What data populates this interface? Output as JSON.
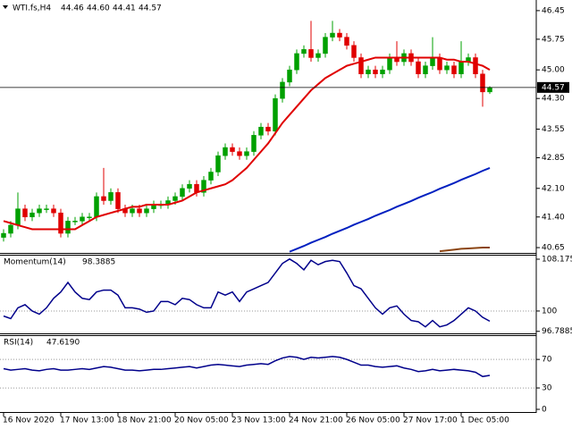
{
  "chart_data": [
    {
      "type": "candlestick",
      "title": "WTI.fs,H4",
      "ohlc_labels": [
        "44.46",
        "44.60",
        "44.41",
        "44.57"
      ],
      "categories": [
        "16 Nov 2020",
        null,
        null,
        null,
        null,
        null,
        null,
        null,
        "17 Nov 13:00",
        null,
        null,
        null,
        null,
        null,
        null,
        null,
        "18 Nov 21:00",
        null,
        null,
        null,
        null,
        null,
        null,
        null,
        "20 Nov 05:00",
        null,
        null,
        null,
        null,
        null,
        null,
        null,
        "23 Nov 13:00",
        null,
        null,
        null,
        null,
        null,
        null,
        null,
        "24 Nov 21:00",
        null,
        null,
        null,
        null,
        null,
        null,
        null,
        "26 Nov 05:00",
        null,
        null,
        null,
        null,
        null,
        null,
        null,
        "27 Nov 17:00",
        null,
        null,
        null,
        null,
        null,
        null,
        null,
        "1 Dec 05:00",
        null,
        null,
        null,
        null
      ],
      "open": [
        40.9,
        41.0,
        41.2,
        41.6,
        41.4,
        41.5,
        41.6,
        41.6,
        41.5,
        41.0,
        41.3,
        41.3,
        41.4,
        41.4,
        41.9,
        41.8,
        42.0,
        41.6,
        41.5,
        41.6,
        41.5,
        41.6,
        41.7,
        41.7,
        41.8,
        41.9,
        42.1,
        42.2,
        42.0,
        42.3,
        42.5,
        42.9,
        43.1,
        43.0,
        42.9,
        43.0,
        43.4,
        43.6,
        43.5,
        44.3,
        44.7,
        45.0,
        45.4,
        45.5,
        45.3,
        45.4,
        45.8,
        45.9,
        45.8,
        45.6,
        45.3,
        44.9,
        45.0,
        44.9,
        45.0,
        45.3,
        45.2,
        45.4,
        45.2,
        44.9,
        45.1,
        45.3,
        45.0,
        45.1,
        44.9,
        45.2,
        45.3,
        44.9,
        44.46
      ],
      "high": [
        41.1,
        41.3,
        42.0,
        41.7,
        41.6,
        41.7,
        41.7,
        41.7,
        41.6,
        41.4,
        41.4,
        41.5,
        41.5,
        42.0,
        42.6,
        42.1,
        42.1,
        41.7,
        41.7,
        41.7,
        41.7,
        41.8,
        41.8,
        41.9,
        42.0,
        42.2,
        42.3,
        42.3,
        42.4,
        42.6,
        43.0,
        43.2,
        43.2,
        43.1,
        43.1,
        43.5,
        43.7,
        43.7,
        44.4,
        44.8,
        45.1,
        45.5,
        45.6,
        46.2,
        45.5,
        45.9,
        46.2,
        46.0,
        45.9,
        45.7,
        45.4,
        45.1,
        45.1,
        45.1,
        45.4,
        45.7,
        45.5,
        45.5,
        45.3,
        45.2,
        45.8,
        45.4,
        45.2,
        45.2,
        45.7,
        45.4,
        45.4,
        45.0,
        44.6
      ],
      "low": [
        40.8,
        40.9,
        41.1,
        41.3,
        41.3,
        41.4,
        41.5,
        41.4,
        40.9,
        40.9,
        41.2,
        41.2,
        41.3,
        41.3,
        41.7,
        41.7,
        41.5,
        41.4,
        41.4,
        41.4,
        41.4,
        41.5,
        41.6,
        41.6,
        41.7,
        41.8,
        42.0,
        41.9,
        41.9,
        42.2,
        42.4,
        42.8,
        42.9,
        42.8,
        42.8,
        42.9,
        43.3,
        43.4,
        43.4,
        44.2,
        44.6,
        44.9,
        45.3,
        45.2,
        45.2,
        45.3,
        45.7,
        45.7,
        45.5,
        45.2,
        44.8,
        44.8,
        44.8,
        44.8,
        44.9,
        45.1,
        45.1,
        45.1,
        44.8,
        44.8,
        45.0,
        44.9,
        44.9,
        44.8,
        44.8,
        45.1,
        44.8,
        44.1,
        44.41
      ],
      "close": [
        41.0,
        41.2,
        41.6,
        41.4,
        41.5,
        41.6,
        41.6,
        41.5,
        41.0,
        41.3,
        41.3,
        41.4,
        41.4,
        41.9,
        41.8,
        42.0,
        41.6,
        41.5,
        41.6,
        41.5,
        41.6,
        41.7,
        41.7,
        41.8,
        41.9,
        42.1,
        42.2,
        42.0,
        42.3,
        42.5,
        42.9,
        43.1,
        43.0,
        42.9,
        43.0,
        43.4,
        43.6,
        43.5,
        44.3,
        44.7,
        45.0,
        45.4,
        45.5,
        45.3,
        45.4,
        45.8,
        45.9,
        45.8,
        45.6,
        45.3,
        44.9,
        45.0,
        44.9,
        45.0,
        45.3,
        45.2,
        45.4,
        45.2,
        44.9,
        45.1,
        45.3,
        45.0,
        45.1,
        44.9,
        45.2,
        45.3,
        44.9,
        44.46,
        44.57
      ],
      "up_color": "#00a000",
      "down_color": "#e00000",
      "series": [
        {
          "color": "#e00000",
          "values": [
            41.3,
            41.25,
            41.2,
            41.15,
            41.1,
            41.1,
            41.1,
            41.1,
            41.1,
            41.1,
            41.1,
            41.2,
            41.3,
            41.4,
            41.45,
            41.5,
            41.55,
            41.6,
            41.65,
            41.65,
            41.7,
            41.7,
            41.7,
            41.7,
            41.75,
            41.8,
            41.9,
            42.0,
            42.05,
            42.1,
            42.15,
            42.2,
            42.3,
            42.45,
            42.6,
            42.8,
            43.0,
            43.2,
            43.45,
            43.7,
            43.9,
            44.1,
            44.3,
            44.5,
            44.65,
            44.8,
            44.9,
            45.0,
            45.1,
            45.15,
            45.2,
            45.25,
            45.3,
            45.3,
            45.3,
            45.3,
            45.3,
            45.3,
            45.3,
            45.3,
            45.3,
            45.3,
            45.25,
            45.25,
            45.2,
            45.2,
            45.15,
            45.1,
            45.0
          ]
        },
        {
          "color": "#0020c0",
          "values": [
            null,
            null,
            null,
            null,
            null,
            null,
            null,
            null,
            null,
            null,
            null,
            null,
            null,
            null,
            null,
            null,
            null,
            null,
            null,
            null,
            null,
            null,
            null,
            null,
            null,
            null,
            null,
            null,
            null,
            null,
            null,
            null,
            null,
            null,
            null,
            null,
            null,
            null,
            null,
            null,
            40.55,
            40.62,
            40.69,
            40.77,
            40.84,
            40.91,
            40.99,
            41.06,
            41.13,
            41.21,
            41.28,
            41.35,
            41.43,
            41.5,
            41.57,
            41.65,
            41.72,
            41.79,
            41.87,
            41.94,
            42.01,
            42.09,
            42.16,
            42.23,
            42.31,
            42.38,
            42.45,
            42.53,
            42.6
          ]
        },
        {
          "color": "#8b4513",
          "values": [
            null,
            null,
            null,
            null,
            null,
            null,
            null,
            null,
            null,
            null,
            null,
            null,
            null,
            null,
            null,
            null,
            null,
            null,
            null,
            null,
            null,
            null,
            null,
            null,
            null,
            null,
            null,
            null,
            null,
            null,
            null,
            null,
            null,
            null,
            null,
            null,
            null,
            null,
            null,
            null,
            null,
            null,
            null,
            null,
            null,
            null,
            null,
            null,
            null,
            null,
            null,
            null,
            null,
            null,
            null,
            null,
            null,
            null,
            null,
            null,
            null,
            40.56,
            40.58,
            40.6,
            40.62,
            40.63,
            40.64,
            40.65,
            40.65
          ]
        }
      ],
      "ylim": [
        40.52,
        46.71
      ],
      "yticks": [
        46.45,
        45.75,
        {
          "value": 45,
          "label": "45.00"
        },
        {
          "value": 44.3,
          "label": "44.30"
        },
        43.55,
        42.85,
        {
          "value": 42.1,
          "label": "42.10"
        },
        {
          "value": 41.4,
          "label": "41.40"
        },
        40.65
      ]
    },
    {
      "type": "line",
      "title": "Momentum(14)",
      "color": "#00008b",
      "values": [
        99.2,
        98.8,
        100.5,
        101,
        100,
        99.5,
        100.5,
        102,
        103,
        104.5,
        103,
        102,
        101.8,
        103,
        103.3,
        103.3,
        102.5,
        100.5,
        100.5,
        100.3,
        99.8,
        100,
        101.5,
        101.5,
        101,
        102,
        101.8,
        101,
        100.5,
        100.5,
        103,
        102.5,
        103,
        101.5,
        103,
        103.5,
        104,
        104.5,
        106,
        107.5,
        108.2,
        107.5,
        106.5,
        108,
        107.3,
        107.8,
        108,
        107.8,
        106,
        104,
        103.5,
        102,
        100.5,
        99.5,
        100.5,
        100.8,
        99.5,
        98.5,
        98.3,
        97.5,
        98.5,
        97.5,
        97.8,
        98.5,
        99.5,
        100.5,
        100,
        99,
        98.3885
      ],
      "ylim": [
        96.47,
        108.88
      ],
      "yticks": [
        108.1753,
        100,
        96.7885
      ],
      "levels": [
        100
      ]
    },
    {
      "type": "line",
      "title": "RSI(14)",
      "color": "#00008b",
      "last_label": "47.6190",
      "values": [
        57,
        55,
        56,
        57,
        55,
        54,
        56,
        57,
        55,
        55,
        56,
        57,
        56,
        58,
        60,
        59,
        57,
        55,
        55,
        54,
        55,
        56,
        56,
        57,
        58,
        59,
        60,
        58,
        60,
        62,
        63,
        62,
        61,
        60,
        62,
        63,
        64,
        63,
        68,
        72,
        74,
        73,
        70,
        73,
        72,
        73,
        74,
        73,
        70,
        66,
        62,
        62,
        60,
        59,
        60,
        61,
        58,
        56,
        53,
        54,
        56,
        54,
        55,
        56,
        55,
        54,
        52,
        46,
        47.619
      ],
      "ylim": [
        -5,
        104
      ],
      "yticks": [
        70,
        30,
        0
      ],
      "levels": [
        70,
        30
      ]
    }
  ]
}
